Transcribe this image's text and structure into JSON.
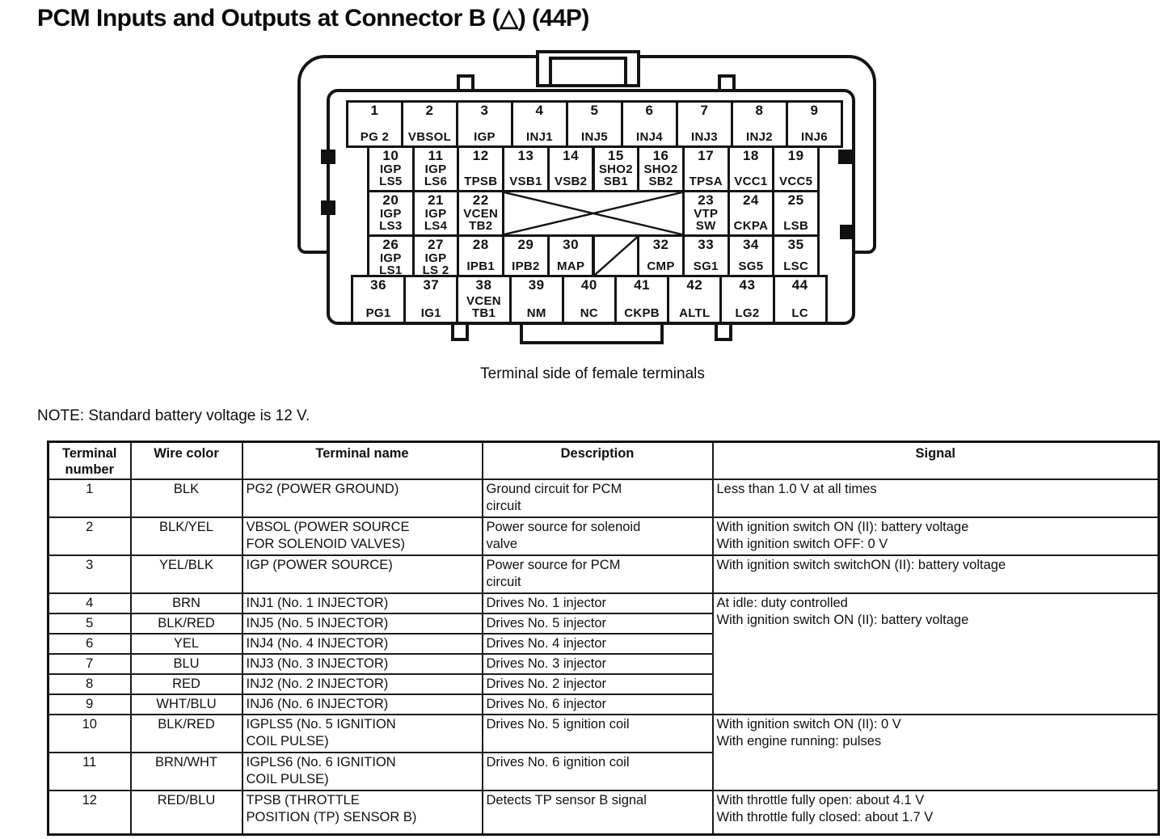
{
  "page": {
    "title": "PCM Inputs and Outputs at Connector B (△) (44P)",
    "caption": "Terminal side of female terminals",
    "note": "NOTE: Standard battery voltage is 12 V."
  },
  "connector": {
    "rows": [
      {
        "cells": [
          {
            "num": "1",
            "label": "PG 2"
          },
          {
            "num": "2",
            "label": "VBSOL"
          },
          {
            "num": "3",
            "label": "IGP"
          },
          {
            "num": "4",
            "label": "INJ1"
          },
          {
            "num": "5",
            "label": "INJ5"
          },
          {
            "num": "6",
            "label": "INJ4"
          },
          {
            "num": "7",
            "label": "INJ3"
          },
          {
            "num": "8",
            "label": "INJ2"
          },
          {
            "num": "9",
            "label": "INJ6"
          }
        ]
      },
      {
        "cells": [
          {
            "num": "10",
            "label": "IGP\nLS5"
          },
          {
            "num": "11",
            "label": "IGP\nLS6"
          },
          {
            "num": "12",
            "label": "TPSB"
          },
          {
            "num": "13",
            "label": "VSB1"
          },
          {
            "num": "14",
            "label": "VSB2"
          },
          {
            "num": "15",
            "label": "SHO2\nSB1"
          },
          {
            "num": "16",
            "label": "SHO2\nSB2"
          },
          {
            "num": "17",
            "label": "TPSA"
          },
          {
            "num": "18",
            "label": "VCC1"
          },
          {
            "num": "19",
            "label": "VCC5"
          }
        ]
      },
      {
        "cells": [
          {
            "num": "20",
            "label": "IGP\nLS3"
          },
          {
            "num": "21",
            "label": "IGP\nLS4"
          },
          {
            "num": "22",
            "label": "VCEN\nTB2"
          },
          {
            "blank": "cross",
            "span": 4
          },
          {
            "num": "23",
            "label": "VTP\nSW"
          },
          {
            "num": "24",
            "label": "CKPA"
          },
          {
            "num": "25",
            "label": "LSB"
          }
        ]
      },
      {
        "cells": [
          {
            "num": "26",
            "label": "IGP\nLS1"
          },
          {
            "num": "27",
            "label": "IGP\nLS 2"
          },
          {
            "num": "28",
            "label": "IPB1"
          },
          {
            "num": "29",
            "label": "IPB2"
          },
          {
            "num": "30",
            "label": "MAP"
          },
          {
            "blank": "slash",
            "span": 1
          },
          {
            "num": "32",
            "label": "CMP"
          },
          {
            "num": "33",
            "label": "SG1"
          },
          {
            "num": "34",
            "label": "SG5"
          },
          {
            "num": "35",
            "label": "LSC"
          }
        ]
      },
      {
        "cells": [
          {
            "num": "36",
            "label": "PG1"
          },
          {
            "num": "37",
            "label": "IG1"
          },
          {
            "num": "38",
            "label": "VCEN\nTB1"
          },
          {
            "num": "39",
            "label": "NM"
          },
          {
            "num": "40",
            "label": "NC"
          },
          {
            "num": "41",
            "label": "CKPB"
          },
          {
            "num": "42",
            "label": "ALTL"
          },
          {
            "num": "43",
            "label": "LG2"
          },
          {
            "num": "44",
            "label": "LC"
          }
        ]
      }
    ]
  },
  "table": {
    "headers": [
      "Terminal number",
      "Wire color",
      "Terminal name",
      "Description",
      "Signal"
    ],
    "rows": [
      {
        "terminal": "1",
        "wire": "BLK",
        "name": "PG2 (POWER GROUND)",
        "description": "Ground circuit for PCM\ncircuit",
        "signal": "Less than 1.0 V at all times",
        "signal_span": 1
      },
      {
        "terminal": "2",
        "wire": "BLK/YEL",
        "name": "VBSOL (POWER SOURCE\nFOR SOLENOID VALVES)",
        "description": "Power source for solenoid\nvalve",
        "signal": "With ignition switch ON (II): battery voltage\nWith ignition switch OFF: 0 V",
        "signal_span": 1
      },
      {
        "terminal": "3",
        "wire": "YEL/BLK",
        "name": "IGP (POWER SOURCE)",
        "description": "Power source for PCM\ncircuit",
        "signal": "With ignition switch switchON (II): battery voltage",
        "signal_span": 1
      },
      {
        "terminal": "4",
        "wire": "BRN",
        "name": "INJ1 (No. 1 INJECTOR)",
        "description": "Drives No. 1 injector",
        "signal": "At idle: duty controlled\nWith ignition switch ON (II): battery voltage",
        "signal_span": 6
      },
      {
        "terminal": "5",
        "wire": "BLK/RED",
        "name": "INJ5 (No. 5 INJECTOR)",
        "description": "Drives No. 5 injector"
      },
      {
        "terminal": "6",
        "wire": "YEL",
        "name": "INJ4 (No. 4 INJECTOR)",
        "description": "Drives No. 4 injector"
      },
      {
        "terminal": "7",
        "wire": "BLU",
        "name": "INJ3 (No. 3 INJECTOR)",
        "description": "Drives No. 3 injector"
      },
      {
        "terminal": "8",
        "wire": "RED",
        "name": "INJ2 (No. 2 INJECTOR)",
        "description": "Drives No. 2 injector"
      },
      {
        "terminal": "9",
        "wire": "WHT/BLU",
        "name": "INJ6 (No. 6 INJECTOR)",
        "description": "Drives No. 6 injector"
      },
      {
        "terminal": "10",
        "wire": "BLK/RED",
        "name": "IGPLS5 (No. 5 IGNITION\nCOIL PULSE)",
        "description": "Drives No. 5 ignition coil",
        "signal": "With ignition switch ON (II): 0 V\nWith engine running: pulses",
        "signal_span": 2
      },
      {
        "terminal": "11",
        "wire": "BRN/WHT",
        "name": "IGPLS6 (No. 6 IGNITION\nCOIL PULSE)",
        "description": "Drives No. 6 ignition coil"
      },
      {
        "terminal": "12",
        "wire": "RED/BLU",
        "name": "TPSB (THROTTLE\nPOSITION (TP) SENSOR B)",
        "description": "Detects TP sensor B signal",
        "signal": "With throttle fully open: about 4.1 V\nWith throttle fully closed: about 1.7 V",
        "signal_span": 1
      }
    ]
  }
}
